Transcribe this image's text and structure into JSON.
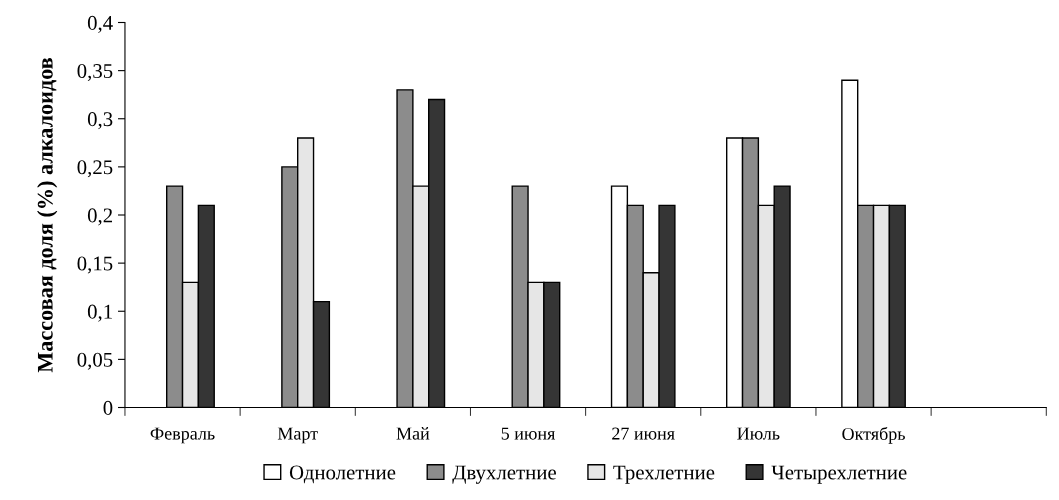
{
  "chart_data": {
    "type": "bar",
    "ylabel": "Массовая доля (%) алкалоидов",
    "categories": [
      "Февраль",
      "Март",
      "Май",
      "5 июня",
      "27 июня",
      "Июль",
      "Октябрь",
      null
    ],
    "series": [
      {
        "name": "Однолетние",
        "color": "#ffffff",
        "values": [
          null,
          null,
          null,
          null,
          0.23,
          0.28,
          0.34,
          null
        ]
      },
      {
        "name": "Двухлетние",
        "color": "#8c8c8c",
        "values": [
          0.23,
          0.25,
          0.33,
          0.23,
          0.21,
          0.28,
          0.21,
          null
        ]
      },
      {
        "name": "Трехлетние",
        "color": "#e6e6e6",
        "values": [
          0.13,
          0.28,
          0.23,
          0.13,
          0.14,
          0.21,
          0.21,
          null
        ]
      },
      {
        "name": "Четырехлетние",
        "color": "#353535",
        "values": [
          0.21,
          0.11,
          0.32,
          0.13,
          0.21,
          0.23,
          0.21,
          null
        ]
      }
    ],
    "ylim": [
      0,
      0.4
    ],
    "yticks": [
      {
        "value": 0,
        "label": "0"
      },
      {
        "value": 0.05,
        "label": "0,05"
      },
      {
        "value": 0.1,
        "label": "0,1"
      },
      {
        "value": 0.15,
        "label": "0,15"
      },
      {
        "value": 0.2,
        "label": "0,2"
      },
      {
        "value": 0.25,
        "label": "0,25"
      },
      {
        "value": 0.3,
        "label": "0,3"
      },
      {
        "value": 0.35,
        "label": "0,35"
      },
      {
        "value": 0.4,
        "label": "0,4"
      }
    ],
    "grid": false,
    "legend": "bottom"
  }
}
